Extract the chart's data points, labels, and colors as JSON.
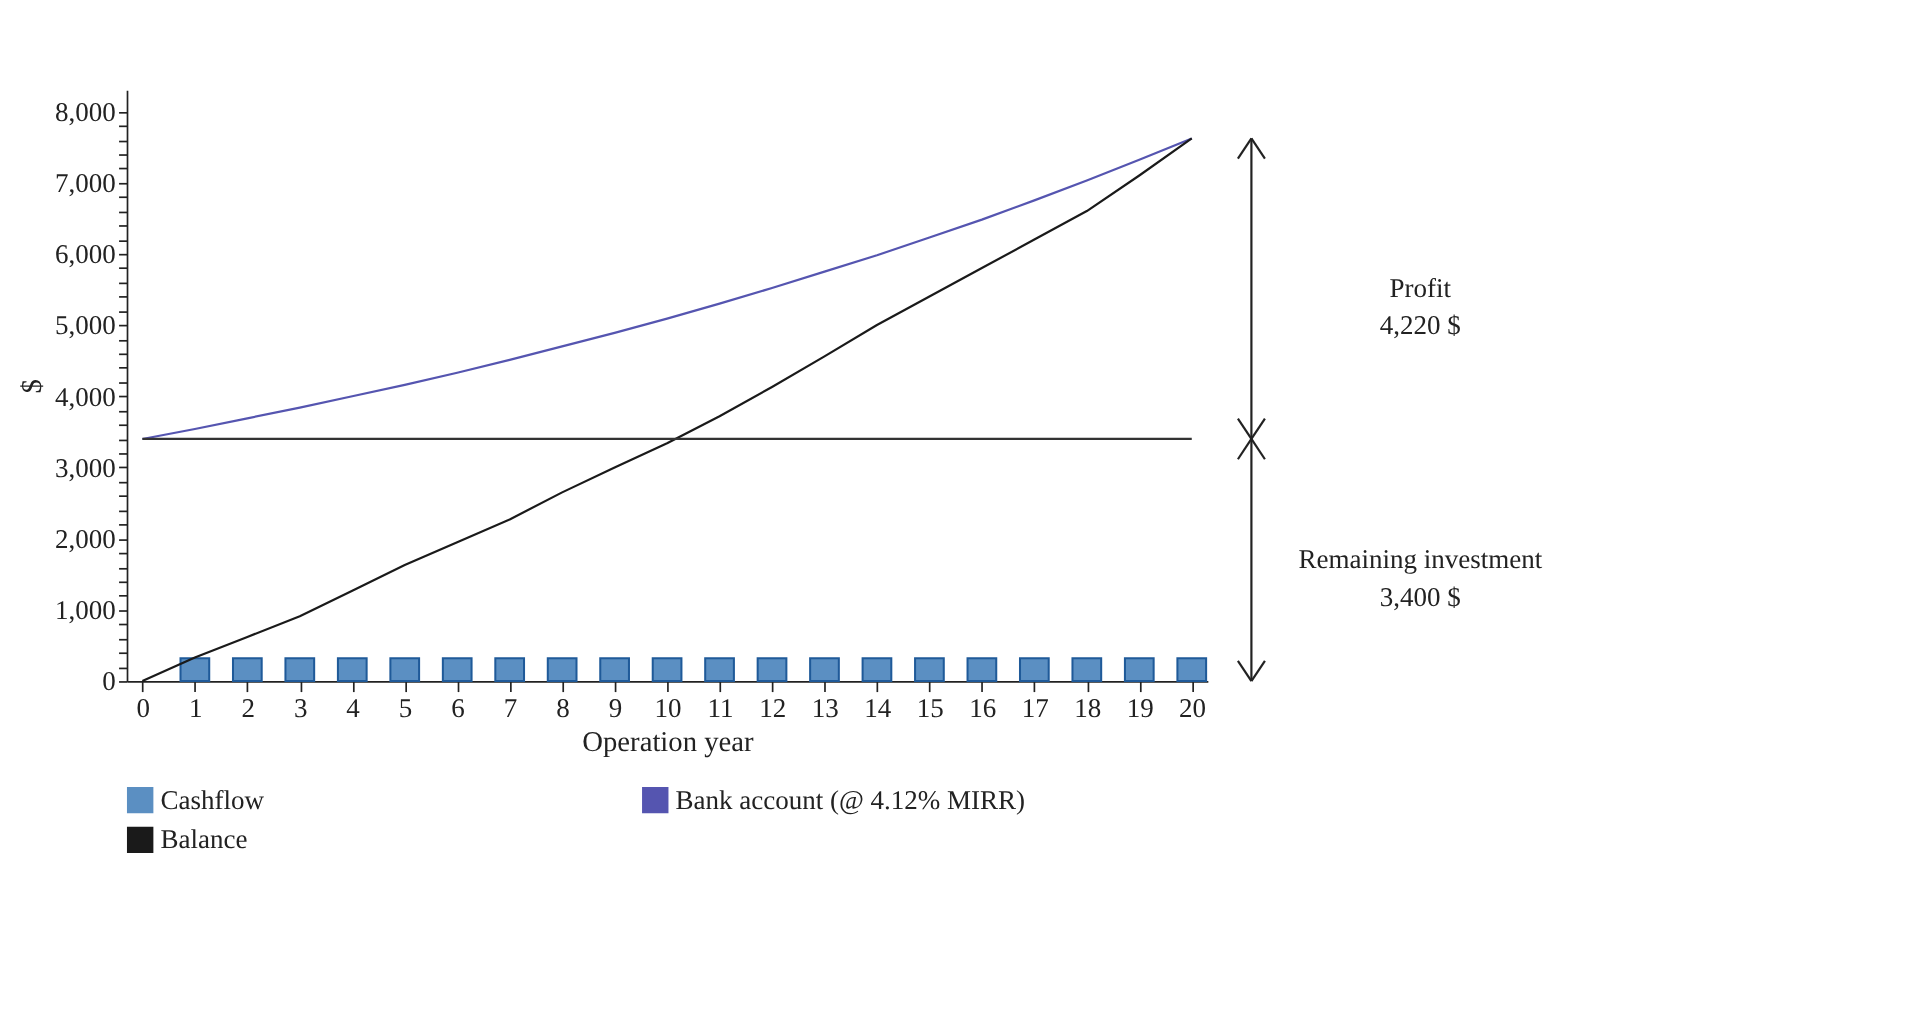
{
  "chart_data": {
    "type": "line",
    "xlabel": "Operation year",
    "ylabel": "$",
    "x": [
      0,
      1,
      2,
      3,
      4,
      5,
      6,
      7,
      8,
      9,
      10,
      11,
      12,
      13,
      14,
      15,
      16,
      17,
      18,
      19,
      20
    ],
    "series": [
      {
        "name": "Cashflow",
        "type": "bar",
        "color": "#5b8fc2",
        "x": [
          1,
          2,
          3,
          4,
          5,
          6,
          7,
          8,
          9,
          10,
          11,
          12,
          13,
          14,
          15,
          16,
          17,
          18,
          19,
          20
        ],
        "values": [
          320,
          320,
          320,
          320,
          320,
          320,
          320,
          320,
          320,
          320,
          320,
          320,
          320,
          320,
          320,
          320,
          320,
          320,
          320,
          320
        ]
      },
      {
        "name": "Bank account (@ 4.12% MIRR)",
        "color": "#5555b0",
        "values": [
          3400,
          3540,
          3690,
          3840,
          4000,
          4160,
          4330,
          4510,
          4700,
          4890,
          5090,
          5300,
          5520,
          5750,
          5980,
          6230,
          6480,
          6750,
          7030,
          7320,
          7620
        ]
      },
      {
        "name": "Balance",
        "color": "#1a1a1a",
        "values": [
          0,
          330,
          620,
          910,
          1270,
          1630,
          1950,
          2270,
          2650,
          3000,
          3340,
          3720,
          4130,
          4560,
          5000,
          5400,
          5800,
          6200,
          6600,
          7100,
          7620
        ]
      }
    ],
    "ref_lines": [
      {
        "axis": "y",
        "value": 3400,
        "color": "#333333"
      }
    ],
    "annotations": [
      "Profit\n4,220 $",
      "Remaining investment\n3,400 $"
    ],
    "xlim": [
      -0.3,
      20.3
    ],
    "xticks": [
      0,
      1,
      2,
      3,
      4,
      5,
      6,
      7,
      8,
      9,
      10,
      11,
      12,
      13,
      14,
      15,
      16,
      17,
      18,
      19,
      20
    ],
    "ylim": [
      0,
      8300
    ],
    "yticks": [
      0,
      {
        "value": 200,
        "label": null
      },
      {
        "value": 400,
        "label": null
      },
      {
        "value": 600,
        "label": null
      },
      {
        "value": 800,
        "label": null
      },
      {
        "value": 1000,
        "label": "1,000"
      },
      {
        "value": 1200,
        "label": null
      },
      {
        "value": 1400,
        "label": null
      },
      {
        "value": 1600,
        "label": null
      },
      {
        "value": 1800,
        "label": null
      },
      {
        "value": 2000,
        "label": "2,000"
      },
      {
        "value": 2200,
        "label": null
      },
      {
        "value": 2400,
        "label": null
      },
      {
        "value": 2600,
        "label": null
      },
      {
        "value": 2800,
        "label": null
      },
      {
        "value": 3000,
        "label": "3,000"
      },
      {
        "value": 3200,
        "label": null
      },
      {
        "value": 3400,
        "label": null
      },
      {
        "value": 3600,
        "label": null
      },
      {
        "value": 3800,
        "label": null
      },
      {
        "value": 4000,
        "label": "4,000"
      },
      {
        "value": 4200,
        "label": null
      },
      {
        "value": 4400,
        "label": null
      },
      {
        "value": 4600,
        "label": null
      },
      {
        "value": 4800,
        "label": null
      },
      {
        "value": 5000,
        "label": "5,000"
      },
      {
        "value": 5200,
        "label": null
      },
      {
        "value": 5400,
        "label": null
      },
      {
        "value": 5600,
        "label": null
      },
      {
        "value": 5800,
        "label": null
      },
      {
        "value": 6000,
        "label": "6,000"
      },
      {
        "value": 6200,
        "label": null
      },
      {
        "value": 6400,
        "label": null
      },
      {
        "value": 6600,
        "label": null
      },
      {
        "value": 6800,
        "label": null
      },
      {
        "value": 7000,
        "label": "7,000"
      },
      {
        "value": 7200,
        "label": null
      },
      {
        "value": 7400,
        "label": null
      },
      {
        "value": 7600,
        "label": null
      },
      {
        "value": 7800,
        "label": null
      },
      {
        "value": 8000,
        "label": "8,000"
      }
    ],
    "grid": false,
    "legend": "bottom",
    "marker": "none",
    "line_style": "solid"
  }
}
